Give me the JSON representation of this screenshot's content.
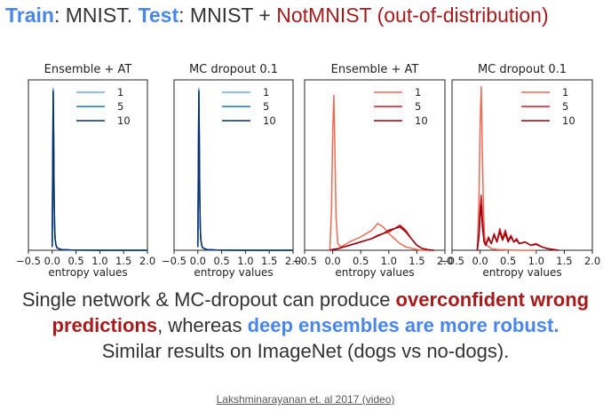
{
  "title": {
    "train_label": "Train",
    "train_text": ": MNIST. ",
    "test_label": "Test",
    "test_text": ": MNIST + ",
    "ood_text": "NotMNIST (out-of-distribution)"
  },
  "caption": {
    "line1_a": "Single network & MC-dropout can produce ",
    "line1_b": "overconfident wrong",
    "line2_a": "predictions",
    "line2_b": ", whereas ",
    "line2_c": "deep ensembles are more robust.",
    "line3": "Similar results on ImageNet (dogs vs no-dogs)."
  },
  "citation": "Lakshminarayanan et. al 2017 (video)",
  "colors": {
    "blue_1": "#6baed6",
    "blue_5": "#2171b5",
    "blue_10": "#08306b",
    "red_1": "#ef6a55",
    "red_5": "#cb181d",
    "red_10": "#99000d"
  },
  "chart_data": [
    {
      "type": "line",
      "title": "Ensemble + AT",
      "xlabel": "entropy values",
      "ylabel": "",
      "xlim": [
        -0.5,
        2.0
      ],
      "xticks": [
        -0.5,
        0.0,
        0.5,
        1.0,
        1.5,
        2.0
      ],
      "xtick_labels": [
        "−0.5",
        "0.0",
        "0.5",
        "1.0",
        "1.5",
        "2.0"
      ],
      "legend": "top-right",
      "grid": false,
      "series": [
        {
          "name": "1",
          "color": "#6baed6",
          "x": [
            0,
            0.01,
            0.02,
            0.03,
            0.04,
            0.05,
            0.06,
            0.08,
            0.1,
            0.15,
            0.2,
            0.4,
            1.0,
            2.0
          ],
          "y": [
            0.02,
            0.5,
            0.97,
            0.7,
            0.35,
            0.15,
            0.07,
            0.03,
            0.015,
            0.008,
            0.004,
            0.001,
            0,
            0
          ]
        },
        {
          "name": "5",
          "color": "#2171b5",
          "x": [
            0,
            0.01,
            0.02,
            0.03,
            0.04,
            0.05,
            0.06,
            0.08,
            0.1,
            0.15,
            0.2,
            0.4,
            1.0,
            2.0
          ],
          "y": [
            0.02,
            0.48,
            0.96,
            0.69,
            0.34,
            0.15,
            0.07,
            0.03,
            0.015,
            0.008,
            0.004,
            0.001,
            0,
            0
          ]
        },
        {
          "name": "10",
          "color": "#08306b",
          "x": [
            0,
            0.01,
            0.02,
            0.03,
            0.04,
            0.05,
            0.06,
            0.08,
            0.1,
            0.15,
            0.2,
            0.4,
            1.0,
            2.0
          ],
          "y": [
            0.02,
            0.47,
            0.95,
            0.68,
            0.33,
            0.14,
            0.07,
            0.03,
            0.015,
            0.008,
            0.004,
            0.001,
            0,
            0
          ]
        }
      ]
    },
    {
      "type": "line",
      "title": "MC dropout 0.1",
      "xlabel": "entropy values",
      "ylabel": "",
      "xlim": [
        -0.5,
        2.0
      ],
      "xticks": [
        -0.5,
        0.0,
        0.5,
        1.0,
        1.5,
        2.0
      ],
      "xtick_labels": [
        "−0.5",
        "0.0",
        "0.5",
        "1.0",
        "1.5",
        "2.0"
      ],
      "legend": "top-right",
      "grid": false,
      "series": [
        {
          "name": "1",
          "color": "#6baed6",
          "x": [
            0,
            0.01,
            0.02,
            0.03,
            0.04,
            0.05,
            0.06,
            0.08,
            0.1,
            0.15,
            0.2,
            0.4,
            1.0,
            2.0
          ],
          "y": [
            0.02,
            0.5,
            0.97,
            0.7,
            0.35,
            0.15,
            0.07,
            0.03,
            0.015,
            0.008,
            0.004,
            0.001,
            0,
            0
          ]
        },
        {
          "name": "5",
          "color": "#2171b5",
          "x": [
            0,
            0.01,
            0.02,
            0.03,
            0.04,
            0.05,
            0.06,
            0.08,
            0.1,
            0.15,
            0.2,
            0.4,
            1.0,
            2.0
          ],
          "y": [
            0.02,
            0.48,
            0.96,
            0.69,
            0.34,
            0.15,
            0.07,
            0.03,
            0.015,
            0.008,
            0.004,
            0.001,
            0,
            0
          ]
        },
        {
          "name": "10",
          "color": "#08306b",
          "x": [
            0,
            0.01,
            0.02,
            0.03,
            0.04,
            0.05,
            0.06,
            0.08,
            0.1,
            0.15,
            0.2,
            0.4,
            1.0,
            2.0
          ],
          "y": [
            0.02,
            0.47,
            0.95,
            0.68,
            0.33,
            0.14,
            0.07,
            0.03,
            0.015,
            0.008,
            0.004,
            0.001,
            0,
            0
          ]
        }
      ]
    },
    {
      "type": "line",
      "title": "Ensemble + AT",
      "xlabel": "entropy values",
      "ylabel": "",
      "xlim": [
        -0.5,
        2.0
      ],
      "xticks": [
        -0.5,
        0.0,
        0.5,
        1.0,
        1.5,
        2.0
      ],
      "xtick_labels": [
        "−0.5",
        "0.0",
        "0.5",
        "1.0",
        "1.5",
        "2.0"
      ],
      "legend": "top-right",
      "grid": false,
      "series": [
        {
          "name": "1",
          "color": "#ef6a55",
          "x": [
            -0.05,
            -0.02,
            0,
            0.02,
            0.04,
            0.06,
            0.09,
            0.14,
            0.2,
            0.3,
            0.5,
            0.7,
            0.8,
            0.9,
            1.0,
            1.1,
            1.2,
            1.3,
            1.5,
            1.6,
            1.8
          ],
          "y": [
            0,
            0.25,
            0.7,
            0.93,
            0.6,
            0.2,
            0.04,
            0.02,
            0.03,
            0.05,
            0.08,
            0.12,
            0.16,
            0.14,
            0.1,
            0.07,
            0.04,
            0.02,
            0.005,
            0,
            0
          ]
        },
        {
          "name": "5",
          "color": "#cb181d",
          "x": [
            -0.05,
            0,
            0.1,
            0.2,
            0.3,
            0.4,
            0.5,
            0.6,
            0.7,
            0.8,
            0.9,
            1.0,
            1.1,
            1.2,
            1.3,
            1.4,
            1.5,
            1.6,
            1.7,
            1.8
          ],
          "y": [
            0,
            0.005,
            0.01,
            0.02,
            0.03,
            0.04,
            0.05,
            0.06,
            0.07,
            0.09,
            0.1,
            0.11,
            0.13,
            0.15,
            0.12,
            0.07,
            0.03,
            0.01,
            0.003,
            0
          ]
        },
        {
          "name": "10",
          "color": "#99000d",
          "x": [
            -0.05,
            0,
            0.1,
            0.2,
            0.3,
            0.4,
            0.5,
            0.6,
            0.7,
            0.8,
            0.9,
            1.0,
            1.1,
            1.2,
            1.3,
            1.4,
            1.5,
            1.6,
            1.7,
            1.8
          ],
          "y": [
            0,
            0.005,
            0.01,
            0.02,
            0.03,
            0.04,
            0.05,
            0.06,
            0.07,
            0.085,
            0.1,
            0.12,
            0.13,
            0.14,
            0.11,
            0.07,
            0.03,
            0.01,
            0.003,
            0
          ]
        }
      ]
    },
    {
      "type": "line",
      "title": "MC dropout 0.1",
      "xlabel": "entropy values",
      "ylabel": "",
      "xlim": [
        -0.5,
        2.0
      ],
      "xticks": [
        -0.5,
        0.0,
        0.5,
        1.0,
        1.5,
        2.0
      ],
      "xtick_labels": [
        "−0.5",
        "0.0",
        "0.5",
        "1.0",
        "1.5",
        "2.0"
      ],
      "legend": "top-right",
      "grid": false,
      "series": [
        {
          "name": "1",
          "color": "#ef6a55",
          "x": [
            -0.05,
            -0.02,
            0,
            0.02,
            0.04,
            0.06,
            0.08,
            0.12,
            0.2,
            0.3,
            0.5,
            0.7,
            1.0
          ],
          "y": [
            0,
            0.3,
            0.75,
            0.98,
            0.6,
            0.25,
            0.08,
            0.03,
            0.01,
            0.005,
            0.002,
            0,
            0
          ]
        },
        {
          "name": "5",
          "color": "#cb181d",
          "x": [
            -0.05,
            -0.02,
            0,
            0.02,
            0.04,
            0.07,
            0.1,
            0.15,
            0.2,
            0.25,
            0.3,
            0.35,
            0.4,
            0.45,
            0.5,
            0.55,
            0.6,
            0.65,
            0.7,
            0.8,
            0.9,
            1.0,
            1.1,
            1.2,
            1.4
          ],
          "y": [
            0,
            0.1,
            0.25,
            0.33,
            0.2,
            0.06,
            0.03,
            0.08,
            0.04,
            0.1,
            0.05,
            0.13,
            0.07,
            0.12,
            0.06,
            0.09,
            0.05,
            0.07,
            0.04,
            0.05,
            0.03,
            0.04,
            0.02,
            0.01,
            0
          ]
        },
        {
          "name": "10",
          "color": "#99000d",
          "x": [
            -0.05,
            -0.02,
            0,
            0.02,
            0.04,
            0.07,
            0.1,
            0.15,
            0.2,
            0.25,
            0.3,
            0.35,
            0.4,
            0.45,
            0.5,
            0.55,
            0.6,
            0.65,
            0.7,
            0.8,
            0.9,
            1.0,
            1.1,
            1.2,
            1.4
          ],
          "y": [
            0,
            0.08,
            0.2,
            0.27,
            0.15,
            0.05,
            0.03,
            0.07,
            0.04,
            0.09,
            0.05,
            0.11,
            0.06,
            0.1,
            0.05,
            0.08,
            0.05,
            0.06,
            0.04,
            0.05,
            0.03,
            0.035,
            0.02,
            0.01,
            0
          ]
        }
      ]
    }
  ]
}
